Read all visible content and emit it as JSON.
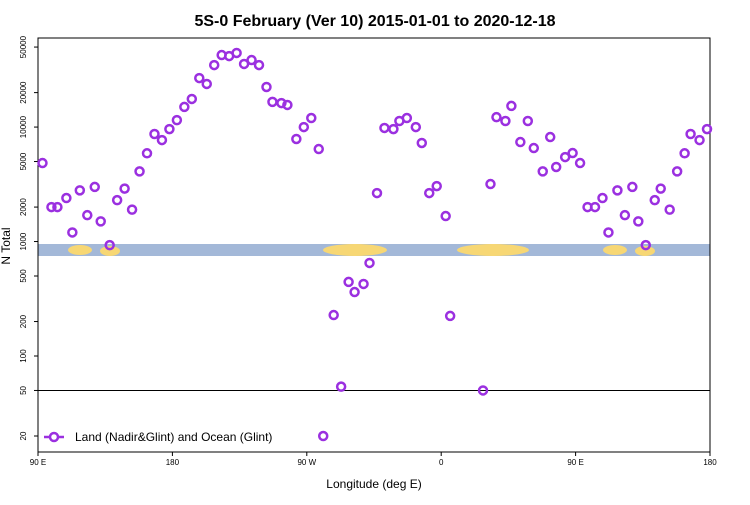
{
  "chart_data": {
    "type": "scatter",
    "title": "5S-0 February (Ver 10)   2015-01-01 to 2020-12-18",
    "x_label": "Longitude (deg E)",
    "y_label": "N Total",
    "log_y": true,
    "xlim": [
      90,
      540
    ],
    "xticks": [
      {
        "value": 90,
        "label": "90 E"
      },
      180,
      {
        "value": 270,
        "label": "90 W"
      },
      {
        "value": 360,
        "label": "0"
      },
      {
        "value": 450,
        "label": "90 E"
      },
      {
        "value": 540,
        "label": "180"
      }
    ],
    "ylim": [
      14.5,
      60000
    ],
    "yticks": [
      20,
      50,
      100,
      200,
      500,
      1000,
      2000,
      5000,
      10000,
      20000,
      50000
    ],
    "reference_line": 50,
    "legend": "bottom-left",
    "series": [
      {
        "name": "Land (Nadir&Glint) and Ocean (Glint)",
        "color": "#9b30e0",
        "x": [
          93,
          99,
          103,
          109,
          113,
          118,
          123,
          128,
          132,
          138,
          143,
          148,
          153,
          158,
          163,
          168,
          173,
          178,
          183,
          188,
          193,
          198,
          203,
          208,
          213,
          218,
          223,
          228,
          233,
          238,
          243,
          247,
          253,
          257,
          263,
          268,
          273,
          278,
          281,
          288,
          293,
          298,
          302,
          308,
          312,
          317,
          322,
          328,
          332,
          337,
          343,
          347,
          352,
          357,
          363,
          366,
          388,
          393,
          397,
          403,
          407,
          413,
          418,
          422,
          428,
          433,
          437,
          443,
          448,
          453,
          458,
          463,
          468,
          472,
          478,
          483,
          488,
          492,
          497,
          503,
          507,
          513,
          518,
          523,
          527,
          533,
          538
        ],
        "values": [
          4850,
          2000,
          2000,
          2400,
          1200,
          2800,
          1700,
          3000,
          1500,
          930,
          2300,
          2900,
          1900,
          4100,
          5900,
          8700,
          7700,
          9600,
          11500,
          15000,
          17600,
          26800,
          23800,
          34800,
          42600,
          41700,
          44400,
          35600,
          38500,
          34800,
          22400,
          16600,
          16200,
          15600,
          7870,
          10000,
          12000,
          6430,
          20,
          228,
          54,
          444,
          362,
          426,
          650,
          2650,
          9820,
          9600,
          11300,
          12000,
          10000,
          7260,
          2650,
          3050,
          1670,
          224,
          50,
          3180,
          12200,
          11300,
          15300,
          7400,
          11300,
          6560,
          4100,
          8180,
          4480,
          5470,
          5930,
          4850,
          2000,
          2000,
          2400,
          1200,
          2800,
          1700,
          3000,
          1500,
          930,
          2300,
          2900,
          1900,
          4100,
          5900,
          8700,
          7700,
          9600
        ]
      }
    ]
  }
}
